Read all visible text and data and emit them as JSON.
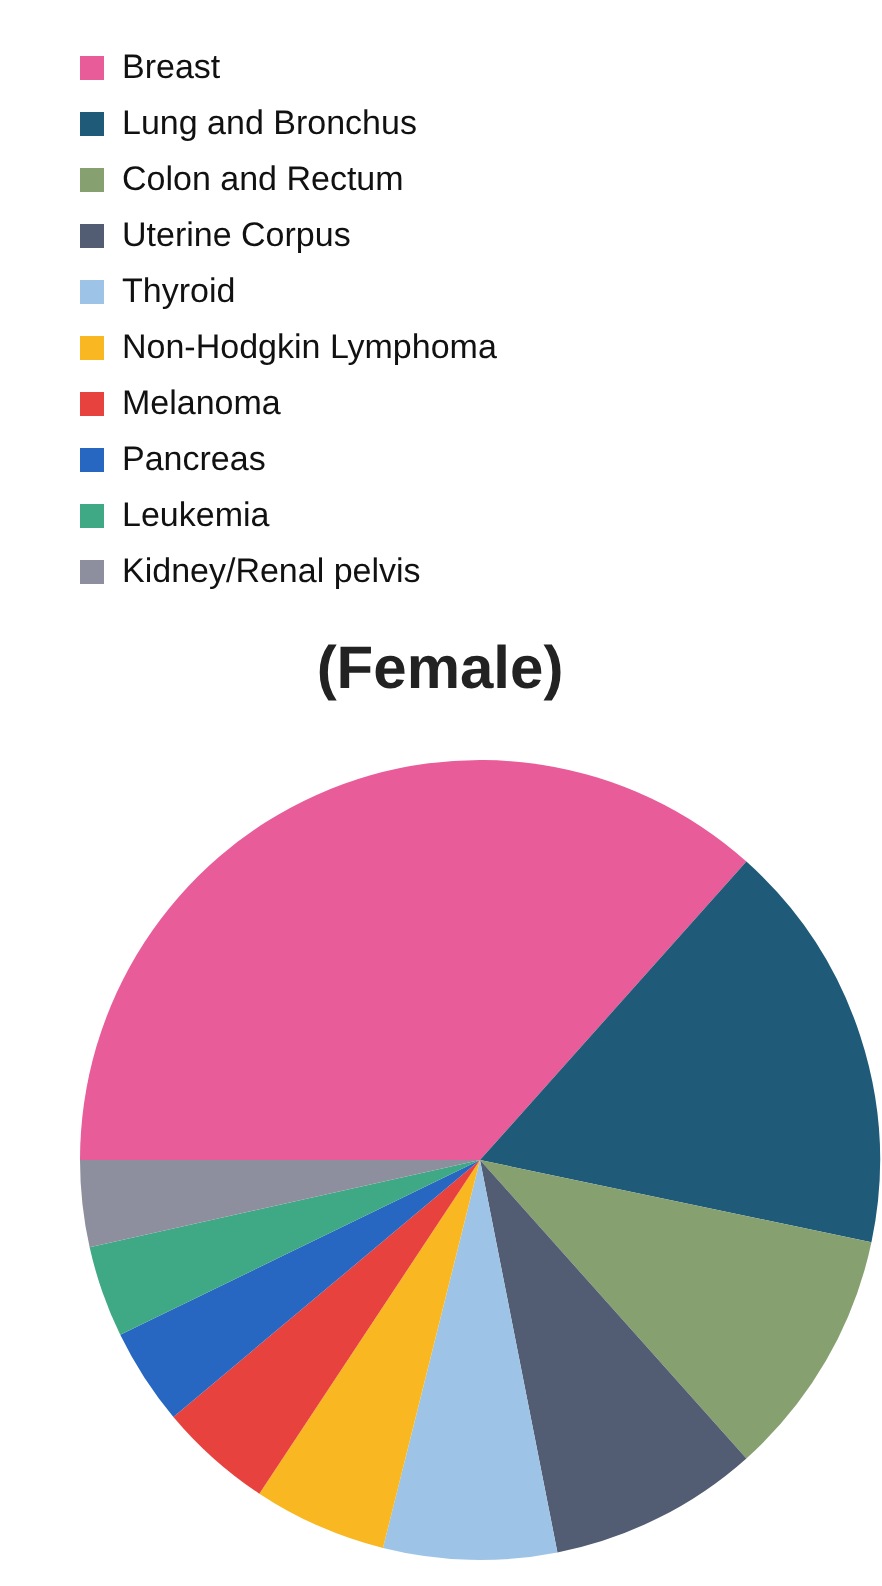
{
  "chart_data": {
    "type": "pie",
    "title": "(Female)",
    "categories": [
      "Breast",
      "Lung and Bronchus",
      "Colon and Rectum",
      "Uterine Corpus",
      "Thyroid",
      "Non-Hodgkin Lymphoma",
      "Melanoma",
      "Pancreas",
      "Leukemia",
      "Kidney/Renal pelvis"
    ],
    "values": [
      36.6,
      16.7,
      10.1,
      8.5,
      7.0,
      5.4,
      4.6,
      3.9,
      3.7,
      3.5
    ],
    "colors": [
      "#e85c9a",
      "#1f5a78",
      "#86a06f",
      "#525c72",
      "#9dc4e6",
      "#f9b821",
      "#e8423f",
      "#2767c2",
      "#3fa884",
      "#8e8f9e"
    ],
    "legend": "top"
  }
}
